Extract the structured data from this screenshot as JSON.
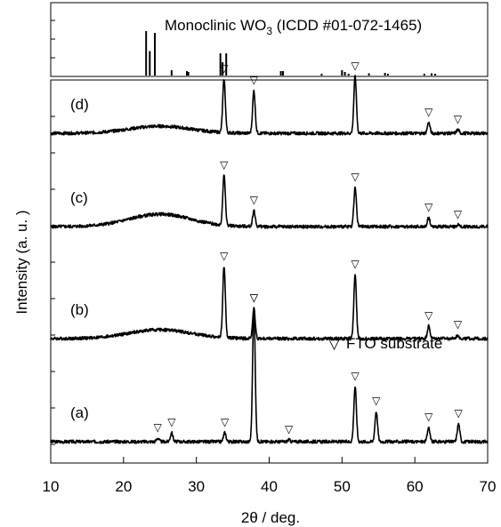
{
  "chart_data": {
    "type": "line",
    "title": "",
    "xlabel": "2θ / deg.",
    "ylabel": "Intensity (a. u. )",
    "xlim": [
      10,
      70
    ],
    "xticks": [
      10,
      20,
      30,
      40,
      50,
      60,
      70
    ],
    "grid": false,
    "reference": {
      "label": "Monoclinic WO",
      "label_sub": "3",
      "label_tail": " (ICDD #01-072-1465)",
      "sticks": [
        {
          "x": 23.1,
          "h": 1.0
        },
        {
          "x": 23.6,
          "h": 0.55
        },
        {
          "x": 24.3,
          "h": 0.96
        },
        {
          "x": 26.6,
          "h": 0.12
        },
        {
          "x": 28.7,
          "h": 0.1
        },
        {
          "x": 28.9,
          "h": 0.08
        },
        {
          "x": 33.3,
          "h": 0.5
        },
        {
          "x": 33.6,
          "h": 0.3
        },
        {
          "x": 34.1,
          "h": 0.5
        },
        {
          "x": 41.6,
          "h": 0.1
        },
        {
          "x": 41.9,
          "h": 0.1
        },
        {
          "x": 47.2,
          "h": 0.04
        },
        {
          "x": 50.0,
          "h": 0.12
        },
        {
          "x": 50.4,
          "h": 0.08
        },
        {
          "x": 50.9,
          "h": 0.04
        },
        {
          "x": 53.7,
          "h": 0.05
        },
        {
          "x": 55.9,
          "h": 0.06
        },
        {
          "x": 56.3,
          "h": 0.04
        },
        {
          "x": 61.3,
          "h": 0.04
        },
        {
          "x": 62.3,
          "h": 0.05
        },
        {
          "x": 62.8,
          "h": 0.04
        }
      ]
    },
    "legend": {
      "marker": "▽",
      "text": "FTO substrate",
      "placement": "right"
    },
    "series": [
      {
        "name": "(a)",
        "offset": 0,
        "hump": 0,
        "peaks": [
          {
            "x": 24.7,
            "h": 0.02
          },
          {
            "x": 26.6,
            "h": 0.05
          },
          {
            "x": 33.9,
            "h": 0.05
          },
          {
            "x": 37.9,
            "h": 0.75
          },
          {
            "x": 42.7,
            "h": 0.01
          },
          {
            "x": 51.8,
            "h": 0.31
          },
          {
            "x": 54.7,
            "h": 0.17
          },
          {
            "x": 61.9,
            "h": 0.08
          },
          {
            "x": 66.0,
            "h": 0.1
          }
        ],
        "markers": [
          24.7,
          26.6,
          33.9,
          37.9,
          42.7,
          51.8,
          54.7,
          61.9,
          66.0
        ]
      },
      {
        "name": "(b)",
        "offset": 1.16,
        "hump": 0.05,
        "peaks": [
          {
            "x": 33.8,
            "h": 0.4
          },
          {
            "x": 37.9,
            "h": 0.17
          },
          {
            "x": 51.8,
            "h": 0.36
          },
          {
            "x": 61.9,
            "h": 0.07
          },
          {
            "x": 65.9,
            "h": 0.02
          }
        ],
        "markers": [
          33.8,
          37.9,
          51.8,
          61.9,
          65.9
        ]
      },
      {
        "name": "(c)",
        "offset": 2.42,
        "hump": 0.07,
        "peaks": [
          {
            "x": 33.8,
            "h": 0.28
          },
          {
            "x": 37.9,
            "h": 0.09
          },
          {
            "x": 51.8,
            "h": 0.22
          },
          {
            "x": 61.9,
            "h": 0.05
          },
          {
            "x": 65.9,
            "h": 0.01
          }
        ],
        "markers": [
          33.8,
          37.9,
          51.8,
          61.9,
          65.9
        ]
      },
      {
        "name": "(d)",
        "offset": 3.47,
        "hump": 0.04,
        "peaks": [
          {
            "x": 33.8,
            "h": 0.3
          },
          {
            "x": 37.9,
            "h": 0.24
          },
          {
            "x": 51.8,
            "h": 0.32
          },
          {
            "x": 61.9,
            "h": 0.06
          },
          {
            "x": 65.9,
            "h": 0.02
          }
        ],
        "markers": [
          33.8,
          37.9,
          51.8,
          61.9,
          65.9
        ]
      }
    ]
  }
}
